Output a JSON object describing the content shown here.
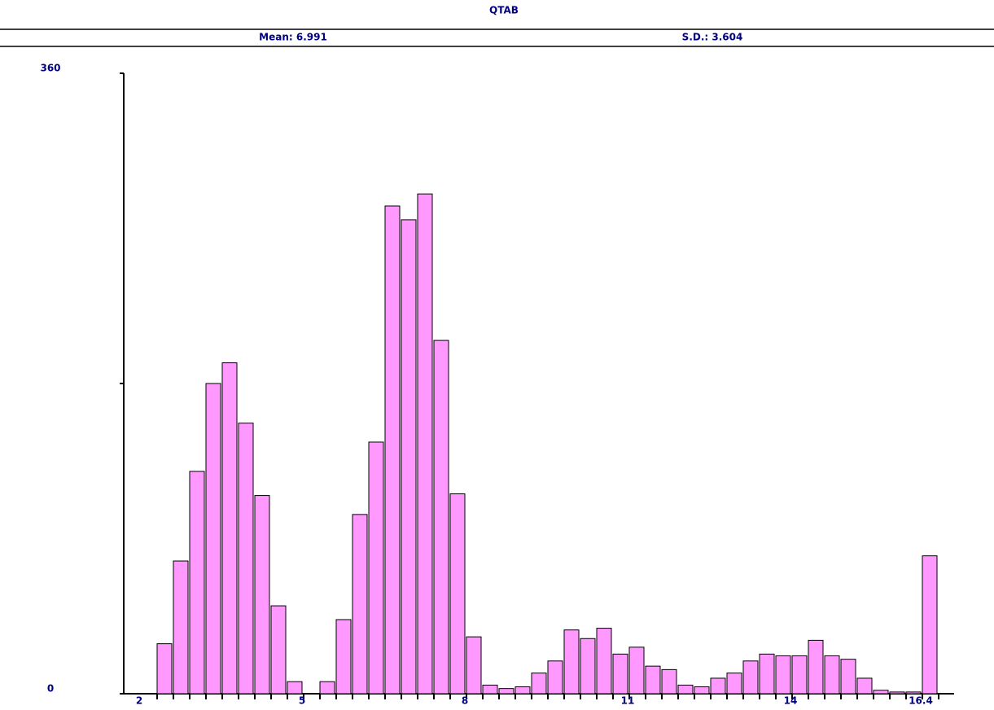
{
  "chart_data": {
    "type": "histogram",
    "title": "QTAB",
    "annotations": [
      "Mean: 6.991",
      "S.D.: 3.604"
    ],
    "bins": [
      2,
      2.3,
      2.6,
      2.9,
      3.2,
      3.5,
      3.8,
      4.1,
      4.4,
      4.7,
      5,
      5.3,
      5.6,
      5.9,
      6.2,
      6.5,
      6.8,
      7.1,
      7.4,
      7.7,
      8,
      8.3,
      8.6,
      8.9,
      9.2,
      9.5,
      9.8,
      10.1,
      10.4,
      10.7,
      11,
      11.3,
      11.6,
      11.9,
      12.2,
      12.5,
      12.8,
      13.1,
      13.4,
      13.7,
      14,
      14.3,
      14.6,
      14.9,
      15.2,
      15.5,
      15.8,
      16.1,
      16.4
    ],
    "values": [
      29,
      77,
      129,
      180,
      192,
      157,
      115,
      51,
      7,
      0,
      7,
      43,
      104,
      146,
      283,
      275,
      290,
      205,
      116,
      33,
      5,
      3,
      4,
      12,
      19,
      37,
      32,
      38,
      23,
      27,
      16,
      14,
      5,
      4,
      9,
      12,
      19,
      23,
      22,
      22,
      31,
      22,
      20,
      9,
      2,
      1,
      1,
      80
    ],
    "color": "#ff99ff",
    "xlim": [
      2,
      16.4
    ],
    "xticks": [
      2,
      5,
      8,
      11,
      14,
      16.4
    ],
    "ylim": [
      0,
      360
    ],
    "yticks": [
      0,
      360
    ],
    "y_minor_ticks": [
      180
    ]
  }
}
